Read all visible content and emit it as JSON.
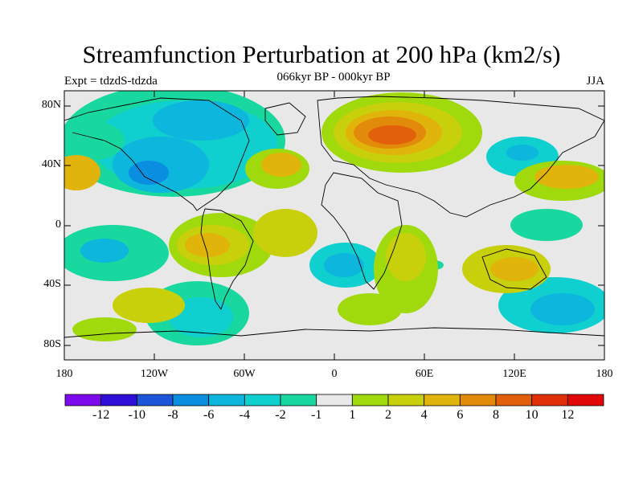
{
  "title": "Streamfunction Perturbation at 200 hPa (km2/s)",
  "experiment_label": "Expt = tdzdS-tdzda",
  "period_label": "066kyr BP - 000kyr BP",
  "season_label": "JJA",
  "y_axis_labels": [
    "80N",
    "40N",
    "0",
    "40S",
    "80S"
  ],
  "x_axis_labels": [
    "180",
    "120W",
    "60W",
    "0",
    "60E",
    "120E",
    "180"
  ],
  "colorbar": {
    "labels": [
      "-12",
      "-10",
      "-8",
      "-6",
      "-4",
      "-2",
      "-1",
      "1",
      "2",
      "4",
      "6",
      "8",
      "10",
      "12"
    ],
    "colors": [
      "#7d0aeb",
      "#3010d8",
      "#1c55d8",
      "#0a8ee0",
      "#0cb6dc",
      "#10cfcf",
      "#18d8a0",
      "#e8e8e8",
      "#a0d90c",
      "#c8d00c",
      "#e0b40a",
      "#e28a0a",
      "#e2600a",
      "#e0300a",
      "#e00808"
    ]
  }
}
